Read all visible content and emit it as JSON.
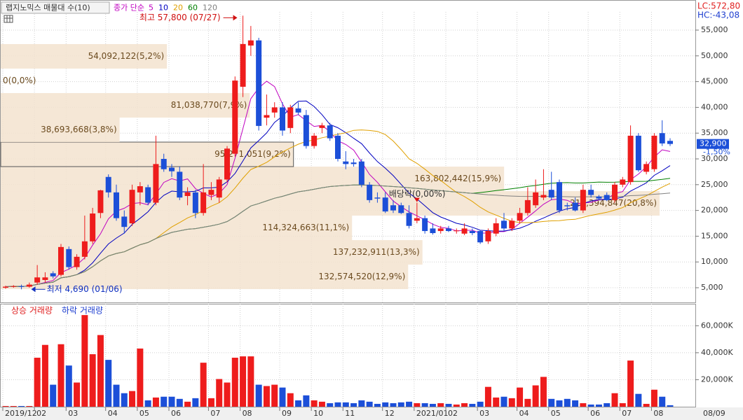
{
  "chart_data": {
    "type": "candlestick",
    "title": "랩지노믹스 매물대 수(10)",
    "ma_legend": {
      "label": "종가 단순",
      "periods": [
        5,
        10,
        20,
        60,
        120
      ],
      "colors": [
        "#c000c0",
        "#0000c0",
        "#e0a000",
        "#008000",
        "#808080"
      ]
    },
    "categories": [
      "2019/12",
      null,
      null,
      null,
      "02",
      null,
      null,
      null,
      "03",
      null,
      null,
      null,
      null,
      "04",
      null,
      null,
      null,
      "05",
      null,
      null,
      null,
      "06",
      null,
      null,
      null,
      null,
      "07",
      null,
      null,
      null,
      "08",
      null,
      null,
      null,
      null,
      "09",
      null,
      null,
      null,
      "10",
      null,
      null,
      null,
      "11",
      null,
      null,
      null,
      null,
      "12",
      null,
      null,
      null,
      "2021/01",
      null,
      null,
      null,
      "02",
      null,
      null,
      null,
      "03",
      null,
      null,
      null,
      null,
      "04",
      null,
      null,
      null,
      "05",
      null,
      null,
      null,
      null,
      "06",
      null,
      null,
      null,
      "07",
      null,
      null,
      null,
      "08",
      null,
      null
    ],
    "open": [
      5000,
      5200,
      5300,
      5200,
      6000,
      6500,
      7800,
      7500,
      12500,
      9000,
      11000,
      14000,
      19500,
      26500,
      23500,
      18800,
      17500,
      23500,
      24500,
      21500,
      30000,
      28300,
      27500,
      22800,
      23500,
      19500,
      23000,
      22500,
      26000,
      31000,
      44000,
      52000,
      53000,
      38000,
      39000,
      40000,
      36000,
      39800,
      38500,
      32500,
      36000,
      36500,
      34500,
      29500,
      29300,
      29500,
      25000,
      22500,
      22500,
      21000,
      21000,
      19500,
      18000,
      18500,
      16500,
      16000,
      16500,
      16000,
      15500,
      16000,
      16000,
      14000,
      15500,
      18000,
      16500,
      18000,
      19500,
      21000,
      22500,
      24000,
      25500,
      21000,
      21500,
      20000,
      24000,
      22700,
      23000,
      22000,
      25000,
      25500,
      34500,
      27500,
      28000,
      35000,
      33500
    ],
    "high": [
      5400,
      5500,
      5600,
      6000,
      9400,
      8000,
      8200,
      13500,
      13000,
      11500,
      19000,
      20500,
      24000,
      27000,
      25000,
      20000,
      25000,
      25500,
      25000,
      34500,
      31000,
      29000,
      28500,
      24500,
      24000,
      29000,
      25500,
      26500,
      32500,
      46000,
      57800,
      55800,
      53500,
      42500,
      41000,
      41000,
      40500,
      41000,
      39500,
      35000,
      37000,
      37000,
      35000,
      31500,
      30000,
      30000,
      25500,
      23500,
      23500,
      22000,
      21500,
      21000,
      21500,
      19000,
      17500,
      17000,
      17000,
      16500,
      17500,
      16500,
      16200,
      16500,
      18500,
      19500,
      18500,
      20500,
      24500,
      26000,
      28000,
      27500,
      26000,
      21500,
      22500,
      25000,
      25000,
      23000,
      23500,
      25500,
      26500,
      36500,
      35000,
      29500,
      35000,
      37500,
      34000
    ],
    "low": [
      4800,
      5000,
      4690,
      5000,
      5600,
      6000,
      6800,
      7200,
      8500,
      8500,
      10500,
      13500,
      18500,
      22500,
      18000,
      15500,
      17000,
      21000,
      21000,
      21000,
      27500,
      26500,
      22000,
      21000,
      18500,
      19000,
      22000,
      21500,
      25500,
      30500,
      42000,
      50000,
      35500,
      36500,
      38000,
      34500,
      35000,
      38500,
      32000,
      32000,
      35000,
      33500,
      29500,
      28000,
      28500,
      24500,
      21500,
      21500,
      19500,
      19500,
      19300,
      16500,
      17500,
      15500,
      15300,
      15500,
      15800,
      15500,
      15200,
      15200,
      13500,
      13500,
      15000,
      16000,
      16000,
      17500,
      19000,
      20500,
      22000,
      22000,
      19500,
      20000,
      19800,
      19500,
      22500,
      22000,
      21800,
      21500,
      24500,
      25000,
      27500,
      27000,
      27500,
      32500,
      32500
    ],
    "close": [
      5200,
      5300,
      5200,
      5600,
      7000,
      7000,
      7200,
      12900,
      9000,
      11000,
      14000,
      19400,
      23900,
      23500,
      18500,
      16800,
      24000,
      24700,
      21500,
      29000,
      28000,
      27600,
      22500,
      23500,
      19500,
      23500,
      24000,
      26000,
      32000,
      45200,
      52300,
      53000,
      36400,
      38500,
      40000,
      35500,
      40000,
      39000,
      32500,
      34500,
      36500,
      34000,
      30000,
      29000,
      29000,
      25000,
      22000,
      22300,
      19800,
      20000,
      19500,
      17000,
      18500,
      16000,
      15600,
      16500,
      16000,
      16100,
      16500,
      15600,
      13800,
      16000,
      17500,
      16500,
      18000,
      19500,
      22000,
      23500,
      23000,
      22500,
      20000,
      20800,
      20000,
      24000,
      23000,
      22300,
      22000,
      25000,
      26000,
      34500,
      27800,
      29000,
      34500,
      33000,
      32900
    ],
    "up_color": "#ee1c1c",
    "down_color": "#1c4fd8",
    "ylim": [
      2150,
      58530
    ],
    "yticks": [
      {
        "value": 5000,
        "label": "5,000"
      },
      {
        "value": 10000,
        "label": "10,000"
      },
      {
        "value": 15000,
        "label": "15,000"
      },
      {
        "value": 20000,
        "label": "20,000"
      },
      {
        "value": 25000,
        "label": "25,000"
      },
      {
        "value": 30000,
        "label": "30,000"
      },
      {
        "value": 35000,
        "label": "35,000"
      },
      {
        "value": 40000,
        "label": "40,000"
      },
      {
        "value": 45000,
        "label": "45,000"
      },
      {
        "value": 50000,
        "label": "50,000"
      },
      {
        "value": 55000,
        "label": "55,000"
      }
    ],
    "grid": true,
    "annotations": {
      "high_label": "최고 57,800 (07/27)",
      "low_label": "최저 4,690 (01/06)",
      "dividend_label": "배당락(0,00%)"
    },
    "indicators": {
      "lc": "LC:572,80",
      "hc": "HC:-43,08"
    },
    "last_price_label": "32,900",
    "change_label": "-1,50%",
    "end_date_label": "08/09",
    "volume_profile": {
      "bins": [
        4728,
        9484,
        14239,
        18995,
        23750,
        28506,
        33261,
        38017,
        42772,
        47528,
        52283
      ],
      "values": [
        132574520,
        137232911,
        114324663,
        214394847,
        163802442,
        95271051,
        38693668,
        81038770,
        0,
        54092122
      ],
      "value_labels": [
        "132,574,520(12,9%)",
        "137,232,911(13,3%)",
        "114,324,663(11,1%)",
        "214,394,847(20,8%)",
        "163,802,442(15,9%)",
        "95,271,051(9,2%)",
        "38,693,668(3,8%)",
        "81,038,770(7,9%)",
        "0(0,0%)",
        "54,092,122(5,2%)"
      ],
      "color": "#f3e3cf"
    },
    "volume": {
      "legend_up": "상승 거래량",
      "legend_down": "하락 거래량",
      "values": [
        500,
        500,
        500,
        500,
        36300,
        45800,
        16300,
        46300,
        30500,
        17900,
        67900,
        38900,
        53100,
        34700,
        16300,
        10000,
        11600,
        43100,
        4700,
        6800,
        7400,
        7400,
        5800,
        3700,
        6300,
        32600,
        6300,
        20500,
        17900,
        36300,
        37300,
        37300,
        16300,
        15300,
        16300,
        14200,
        10000,
        4700,
        8400,
        4700,
        3700,
        2600,
        3200,
        3200,
        2600,
        4700,
        3700,
        2100,
        3200,
        2600,
        3200,
        3700,
        2600,
        2600,
        2100,
        2600,
        2100,
        1600,
        2600,
        2100,
        3700,
        14700,
        6800,
        7400,
        6300,
        14200,
        5800,
        15800,
        22100,
        5800,
        4700,
        5800,
        4700,
        2600,
        1600,
        1600,
        2600,
        10000,
        2600,
        34200,
        9500,
        2100,
        12600,
        7400,
        1100
      ],
      "ylim": [
        0,
        74700
      ],
      "yticks": [
        {
          "value": 20000,
          "label": "20,000K"
        },
        {
          "value": 40000,
          "label": "40,000K"
        },
        {
          "value": 60000,
          "label": "60,000K"
        }
      ]
    }
  }
}
